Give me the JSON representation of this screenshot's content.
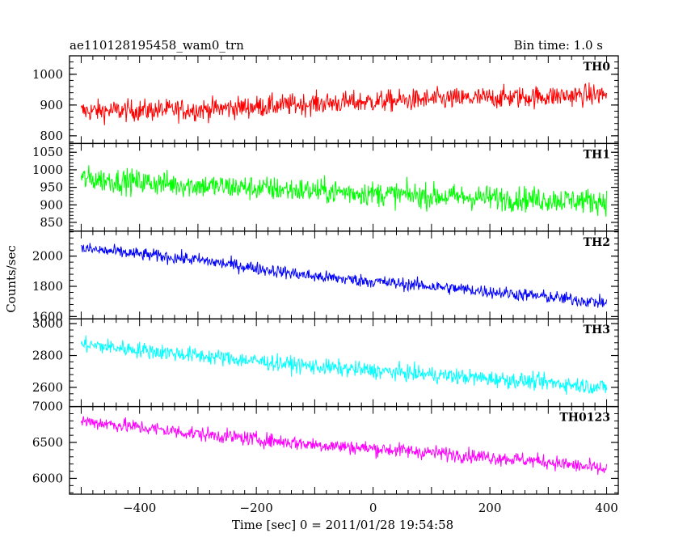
{
  "chart_data": {
    "type": "line",
    "title": "ae110128195458_wam0_trn",
    "subtitle": "Bin time: 1.0 s",
    "xlabel": "Time [sec] 0 = 2011/01/28 19:54:58",
    "ylabel": "Counts/sec",
    "xlim": [
      -520,
      420
    ],
    "x_data_range": [
      -500,
      400
    ],
    "x_ticks": [
      -400,
      -200,
      0,
      200,
      400
    ],
    "x_tick_labels": [
      "−400",
      "−200",
      "0",
      "200",
      "400"
    ],
    "grid": false,
    "panels": [
      {
        "name": "TH0",
        "color": "#ff0000",
        "ylim": [
          775,
          1060
        ],
        "y_ticks": [
          800,
          900,
          1000
        ],
        "y_tick_labels": [
          "800",
          "900",
          "1000"
        ],
        "trend": [
          [
            -500,
            880
          ],
          [
            -300,
            885
          ],
          [
            -100,
            905
          ],
          [
            100,
            918
          ],
          [
            300,
            928
          ],
          [
            400,
            935
          ]
        ],
        "noise": 35
      },
      {
        "name": "TH1",
        "color": "#00ff00",
        "ylim": [
          825,
          1075
        ],
        "y_ticks": [
          850,
          900,
          950,
          1000,
          1050
        ],
        "y_tick_labels": [
          "850",
          "900",
          "950",
          "1000",
          "1050"
        ],
        "trend": [
          [
            -500,
            975
          ],
          [
            -300,
            955
          ],
          [
            -100,
            940
          ],
          [
            100,
            925
          ],
          [
            300,
            915
          ],
          [
            400,
            910
          ]
        ],
        "noise": 35
      },
      {
        "name": "TH2",
        "color": "#0000ff",
        "ylim": [
          1585,
          2165
        ],
        "y_ticks": [
          1600,
          1800,
          2000
        ],
        "y_tick_labels": [
          "1600",
          "1800",
          "2000"
        ],
        "trend": [
          [
            -500,
            2050
          ],
          [
            -300,
            1975
          ],
          [
            -100,
            1865
          ],
          [
            100,
            1800
          ],
          [
            300,
            1730
          ],
          [
            400,
            1690
          ]
        ],
        "noise": 42
      },
      {
        "name": "TH3",
        "color": "#00ffff",
        "ylim": [
          2480,
          3030
        ],
        "y_ticks": [
          2600,
          2800,
          3000
        ],
        "y_tick_labels": [
          "2600",
          "2800",
          "3000"
        ],
        "trend": [
          [
            -500,
            2870
          ],
          [
            -300,
            2800
          ],
          [
            -100,
            2730
          ],
          [
            100,
            2680
          ],
          [
            300,
            2630
          ],
          [
            400,
            2600
          ]
        ],
        "noise": 50
      },
      {
        "name": "TH0123",
        "color": "#ff00ff",
        "ylim": [
          5780,
          7000
        ],
        "y_ticks": [
          6000,
          6500,
          7000
        ],
        "y_tick_labels": [
          "6000",
          "6500",
          "7000"
        ],
        "trend": [
          [
            -500,
            6800
          ],
          [
            -300,
            6620
          ],
          [
            -100,
            6470
          ],
          [
            100,
            6360
          ],
          [
            300,
            6230
          ],
          [
            400,
            6120
          ]
        ],
        "noise": 100
      }
    ]
  }
}
